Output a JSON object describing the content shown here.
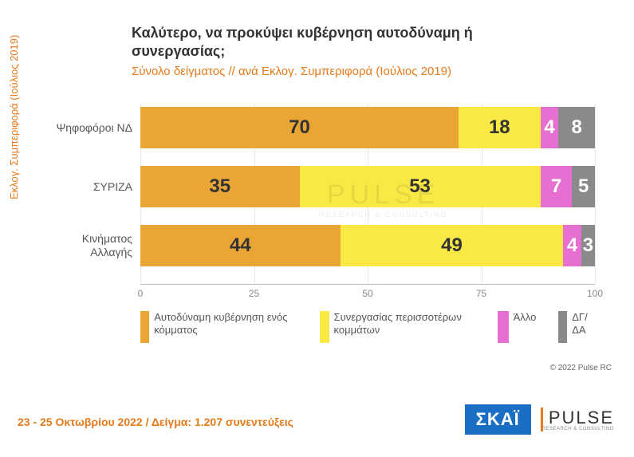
{
  "title": "Καλύτερο, να προκύψει κυβέρνηση αυτοδύναμη ή συνεργασίας;",
  "subtitle": "Σύνολο δείγματος // ανά Εκλογ. Συμπεριφορά (Ιούλιος 2019)",
  "subtitle_color": "#e57a1a",
  "title_color": "#333333",
  "vaxis_label": "Εκλογ. Συμπεριφορά (Ιούλιος 2019)",
  "vaxis_color": "#e57a1a",
  "chart": {
    "type": "stacked-bar-horizontal",
    "xlim": [
      0,
      100
    ],
    "xticks": [
      0,
      25,
      50,
      75,
      100
    ],
    "background_color": "#ffffff",
    "grid_color": "#e8e8e8",
    "series": [
      {
        "key": "autonomous",
        "label": "Αυτοδύναμη κυβέρνηση ενός κόμματος",
        "color": "#e9a635",
        "text_color": "#333333"
      },
      {
        "key": "coalition",
        "label": "Συνεργασίας περισσοτέρων κομμάτων",
        "color": "#fae945",
        "text_color": "#333333"
      },
      {
        "key": "other",
        "label": "Άλλο",
        "color": "#e66fd1",
        "text_color": "#ffffff"
      },
      {
        "key": "dkna",
        "label": "ΔΓ/ΔΑ",
        "color": "#8a8a8a",
        "text_color": "#ffffff"
      }
    ],
    "rows": [
      {
        "label": "Ψηφοφόροι ΝΔ",
        "values": {
          "autonomous": 70,
          "coalition": 18,
          "other": 4,
          "dkna": 8
        }
      },
      {
        "label": "ΣΥΡΙΖΑ",
        "values": {
          "autonomous": 35,
          "coalition": 53,
          "other": 7,
          "dkna": 5
        }
      },
      {
        "label": "Κινήματος Αλλαγής",
        "values": {
          "autonomous": 44,
          "coalition": 49,
          "other": 4,
          "dkna": 3
        }
      }
    ],
    "value_fontsize": 24
  },
  "copyright": "© 2022 Pulse RC",
  "footer_date": "23 - 25  Οκτωβρίου  2022  /  Δείγμα:  1.207 συνεντεύξεις",
  "footer_color": "#e57a1a",
  "logos": {
    "skai": "ΣΚΑΪ",
    "pulse": "PULSE",
    "pulse_sub": "RESEARCH & CONSULTING"
  },
  "watermark": {
    "main": "PULSE",
    "sub": "RESEARCH & CONSULTING"
  }
}
